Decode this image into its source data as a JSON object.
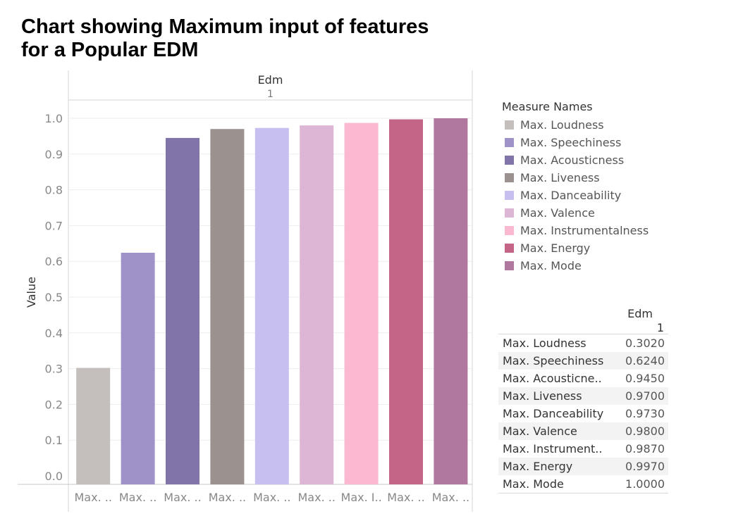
{
  "title_lines": [
    "Chart showing Maximum input of features",
    "for a Popular EDM"
  ],
  "chart_data": {
    "type": "bar",
    "header": "Edm",
    "subheader": "1",
    "ylabel": "Value",
    "ylim": [
      0,
      1.0
    ],
    "yticks": [
      "1.0",
      "0.9",
      "0.8",
      "0.7",
      "0.6",
      "0.5",
      "0.4",
      "0.3",
      "0.2",
      "0.1",
      "0.0"
    ],
    "categories": [
      "Max. Loudness",
      "Max. Speechiness",
      "Max. Acousticness",
      "Max. Liveness",
      "Max. Danceability",
      "Max. Valence",
      "Max. Instrumentalness",
      "Max. Energy",
      "Max. Mode"
    ],
    "category_tick_labels": [
      "Max. ..",
      "Max. ..",
      "Max. ..",
      "Max. ..",
      "Max. ..",
      "Max. ..",
      "Max. I..",
      "Max. ..",
      "Max. .."
    ],
    "values": [
      0.302,
      0.624,
      0.945,
      0.97,
      0.973,
      0.98,
      0.987,
      0.997,
      1.0
    ],
    "colors": [
      "#c4bfbc",
      "#9e92c8",
      "#8174a9",
      "#9b918e",
      "#c7bff0",
      "#ddb5d5",
      "#fbb9d1",
      "#c46588",
      "#b0789f"
    ],
    "grid": true,
    "legend_position": "right"
  },
  "legend": {
    "title": "Measure Names",
    "items": [
      "Max. Loudness",
      "Max. Speechiness",
      "Max. Acousticness",
      "Max. Liveness",
      "Max. Danceability",
      "Max. Valence",
      "Max. Instrumentalness",
      "Max. Energy",
      "Max. Mode"
    ]
  },
  "table": {
    "column_header": "Edm",
    "column_subheader": "1",
    "rows": [
      {
        "name": "Max. Loudness",
        "value": "0.3020"
      },
      {
        "name": "Max. Speechiness",
        "value": "0.6240"
      },
      {
        "name": "Max. Acousticne..",
        "value": "0.9450"
      },
      {
        "name": "Max. Liveness",
        "value": "0.9700"
      },
      {
        "name": "Max. Danceability",
        "value": "0.9730"
      },
      {
        "name": "Max. Valence",
        "value": "0.9800"
      },
      {
        "name": "Max. Instrument..",
        "value": "0.9870"
      },
      {
        "name": "Max. Energy",
        "value": "0.9970"
      },
      {
        "name": "Max. Mode",
        "value": "1.0000"
      }
    ]
  }
}
